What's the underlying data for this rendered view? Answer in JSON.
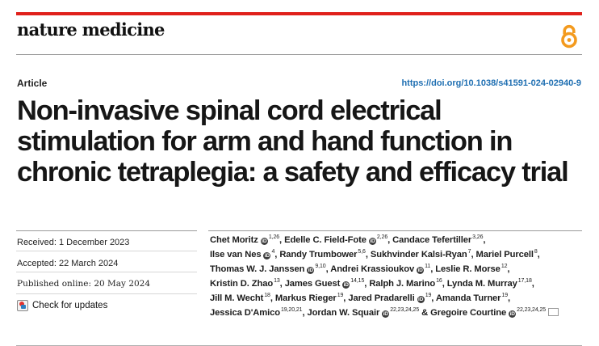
{
  "header": {
    "journal_name": "nature medicine",
    "open_access_icon": "open-access-icon",
    "accent_color": "#e0211b"
  },
  "article": {
    "type": "Article",
    "doi": "https://doi.org/10.1038/s41591-024-02940-9",
    "title_lines": [
      "Non-invasive spinal cord electrical",
      "stimulation for arm and hand function in",
      "chronic tetraplegia: a safety and efficacy trial"
    ]
  },
  "dates": {
    "received": "Received: 1 December 2023",
    "accepted": "Accepted: 22 March 2024",
    "published": "Published online: 20 May 2024"
  },
  "check_updates": {
    "label": "Check for updates",
    "icon": "check-updates-icon"
  },
  "authors": [
    {
      "name": "Chet Moritz",
      "orcid": true,
      "sup": "1,26"
    },
    {
      "name": "Edelle C. Field-Fote",
      "orcid": true,
      "sup": "2,26"
    },
    {
      "name": "Candace Tefertiller",
      "orcid": false,
      "sup": "3,26"
    },
    {
      "name": "Ilse van Nes",
      "orcid": true,
      "sup": "4"
    },
    {
      "name": "Randy Trumbower",
      "orcid": false,
      "sup": "5,6"
    },
    {
      "name": "Sukhvinder Kalsi-Ryan",
      "orcid": false,
      "sup": "7"
    },
    {
      "name": "Mariel Purcell",
      "orcid": false,
      "sup": "8"
    },
    {
      "name": "Thomas W. J. Janssen",
      "orcid": true,
      "sup": "9,10"
    },
    {
      "name": "Andrei Krassioukov",
      "orcid": true,
      "sup": "11"
    },
    {
      "name": "Leslie R. Morse",
      "orcid": false,
      "sup": "12"
    },
    {
      "name": "Kristin D. Zhao",
      "orcid": false,
      "sup": "13"
    },
    {
      "name": "James Guest",
      "orcid": true,
      "sup": "14,15"
    },
    {
      "name": "Ralph J. Marino",
      "orcid": false,
      "sup": "16"
    },
    {
      "name": "Lynda M. Murray",
      "orcid": false,
      "sup": "17,18"
    },
    {
      "name": "Jill M. Wecht",
      "orcid": false,
      "sup": "18"
    },
    {
      "name": "Markus Rieger",
      "orcid": false,
      "sup": "19"
    },
    {
      "name": "Jared Pradarelli",
      "orcid": true,
      "sup": "19"
    },
    {
      "name": "Amanda Turner",
      "orcid": false,
      "sup": "19"
    },
    {
      "name": "Jessica D'Amico",
      "orcid": false,
      "sup": "19,20,21"
    },
    {
      "name": "Jordan W. Squair",
      "orcid": true,
      "sup": "22,23,24,25"
    },
    {
      "name": "Gregoire Courtine",
      "orcid": true,
      "sup": "22,23,24,25"
    }
  ],
  "author_lines": [
    [
      0,
      1,
      2
    ],
    [
      3,
      4,
      5,
      6
    ],
    [
      7,
      8,
      9
    ],
    [
      10,
      11,
      12,
      13
    ],
    [
      14,
      15,
      16,
      17
    ],
    [
      18,
      19,
      20
    ]
  ],
  "author_connector": "&"
}
